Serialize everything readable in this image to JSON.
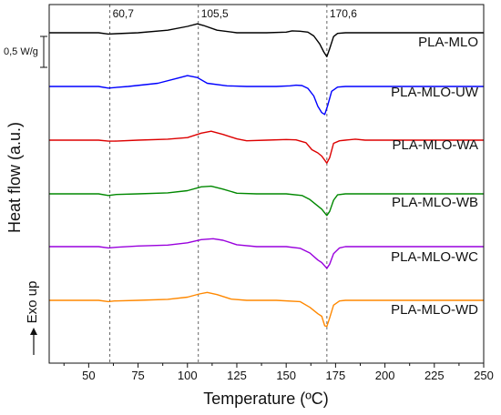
{
  "chart_data": {
    "type": "line",
    "xlabel": "Temperature (ºC)",
    "ylabel": "Heat flow (a.u.)",
    "xlim": [
      30,
      250
    ],
    "xticks": [
      50,
      75,
      100,
      125,
      150,
      175,
      200,
      225,
      250
    ],
    "grid": false,
    "legend": "labels printed beside each curve on the right",
    "scale_bar_label": "0,5 W/g",
    "exo_label": "Exo up",
    "reference_lines": [
      {
        "x": 60.7,
        "label": "60,7"
      },
      {
        "x": 105.5,
        "label": "105,5"
      },
      {
        "x": 170.6,
        "label": "170,6"
      }
    ],
    "series": [
      {
        "name": "PLA-MLO",
        "color": "#000000",
        "x": [
          30,
          55,
          60,
          64,
          75,
          90,
          100,
          105,
          108,
          115,
          125,
          140,
          150,
          153,
          157,
          161,
          164,
          167,
          169,
          170.6,
          172,
          174,
          176,
          180,
          200,
          250
        ],
        "y": [
          0,
          0,
          -0.04,
          -0.03,
          0,
          0.08,
          0.2,
          0.28,
          0.23,
          0.08,
          0,
          0,
          0.02,
          0.06,
          0.05,
          0.02,
          -0.1,
          -0.35,
          -0.6,
          -0.75,
          -0.5,
          -0.12,
          -0.02,
          0,
          0,
          0
        ]
      },
      {
        "name": "PLA-MLO-UW",
        "color": "#0000ff",
        "x": [
          30,
          55,
          60,
          62,
          70,
          85,
          95,
          100,
          105,
          110,
          120,
          130,
          145,
          152,
          155,
          158,
          161,
          164,
          166,
          168,
          169.5,
          171,
          173,
          176,
          180,
          200,
          250
        ],
        "y": [
          0,
          0,
          -0.05,
          -0.04,
          0,
          0.1,
          0.26,
          0.34,
          0.28,
          0.1,
          0.02,
          0,
          0,
          0.02,
          0.04,
          0.03,
          -0.06,
          -0.3,
          -0.62,
          -0.82,
          -0.88,
          -0.6,
          -0.15,
          -0.02,
          0,
          0,
          0
        ]
      },
      {
        "name": "PLA-MLO-WA",
        "color": "#dd0000",
        "x": [
          30,
          55,
          60,
          63,
          75,
          90,
          100,
          107,
          112,
          118,
          125,
          130,
          140,
          150,
          155,
          160,
          163,
          166,
          168,
          170.6,
          172,
          174,
          177,
          180,
          185,
          190,
          250
        ],
        "y": [
          0,
          0,
          -0.03,
          -0.03,
          0,
          0.03,
          0.08,
          0.22,
          0.28,
          0.18,
          0.04,
          -0.02,
          0,
          0.02,
          0.01,
          -0.08,
          -0.3,
          -0.4,
          -0.5,
          -0.72,
          -0.55,
          -0.1,
          -0.02,
          0,
          0.03,
          0,
          0
        ]
      },
      {
        "name": "PLA-MLO-WB",
        "color": "#008800",
        "x": [
          30,
          55,
          60,
          64,
          75,
          90,
          100,
          107,
          112,
          118,
          125,
          135,
          150,
          158,
          162,
          165,
          168,
          170.6,
          172,
          174,
          176,
          180,
          200,
          250
        ],
        "y": [
          0,
          0,
          -0.05,
          -0.02,
          0,
          0.03,
          0.1,
          0.22,
          0.24,
          0.15,
          0.02,
          0,
          0,
          -0.05,
          -0.18,
          -0.33,
          -0.48,
          -0.68,
          -0.55,
          -0.2,
          -0.03,
          0,
          0,
          0
        ]
      },
      {
        "name": "PLA-MLO-WC",
        "color": "#9900dd",
        "x": [
          30,
          55,
          60,
          64,
          75,
          90,
          100,
          107,
          113,
          118,
          125,
          135,
          150,
          157,
          162,
          166,
          168,
          170.6,
          172,
          174,
          177,
          180,
          200,
          250
        ],
        "y": [
          0,
          0,
          -0.04,
          -0.02,
          0.02,
          0.05,
          0.12,
          0.22,
          0.25,
          0.2,
          0.06,
          0,
          0,
          -0.05,
          -0.2,
          -0.42,
          -0.5,
          -0.68,
          -0.55,
          -0.22,
          -0.04,
          0,
          0,
          0
        ]
      },
      {
        "name": "PLA-MLO-WD",
        "color": "#ff8800",
        "x": [
          30,
          55,
          60,
          63,
          75,
          90,
          100,
          106,
          110,
          115,
          122,
          130,
          145,
          157,
          162,
          166,
          168,
          169.5,
          170.6,
          172,
          174,
          177,
          180,
          200,
          250
        ],
        "y": [
          0,
          0,
          -0.04,
          -0.02,
          0,
          0.03,
          0.1,
          0.2,
          0.25,
          0.18,
          0.04,
          0,
          0,
          -0.04,
          -0.22,
          -0.42,
          -0.5,
          -0.8,
          -0.82,
          -0.55,
          -0.15,
          -0.02,
          0,
          0,
          0
        ]
      }
    ]
  }
}
